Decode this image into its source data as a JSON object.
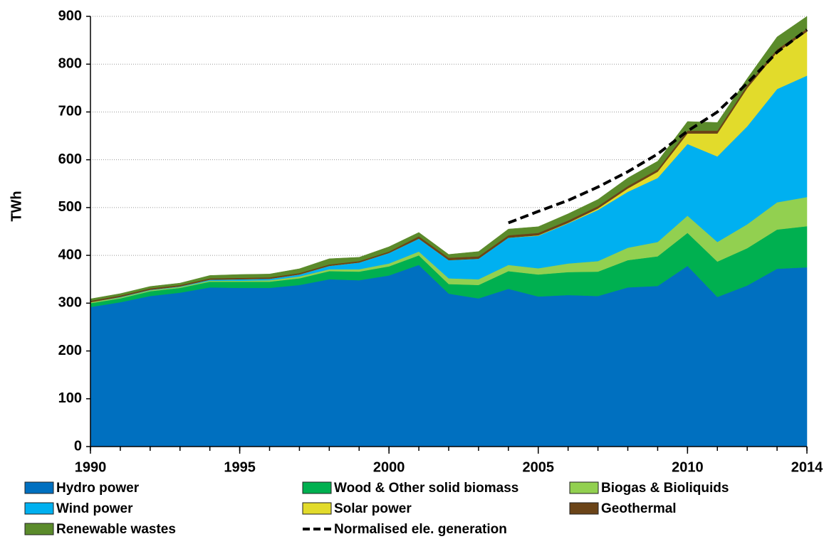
{
  "chart_data": {
    "type": "stacked-area",
    "y_label": "TWh",
    "x": [
      1990,
      1991,
      1992,
      1993,
      1994,
      1995,
      1996,
      1997,
      1998,
      1999,
      2000,
      2001,
      2002,
      2003,
      2004,
      2005,
      2006,
      2007,
      2008,
      2009,
      2010,
      2011,
      2012,
      2013,
      2014
    ],
    "xlim": [
      1990,
      2014
    ],
    "xticks": [
      1990,
      1995,
      2000,
      2005,
      2010,
      2014
    ],
    "ylim": [
      0,
      900
    ],
    "yticks": [
      0,
      100,
      200,
      300,
      400,
      500,
      600,
      700,
      800,
      900
    ],
    "grid": true,
    "legend": "bottom",
    "series": [
      {
        "name": "Hydro power",
        "color": "#0070c0",
        "values": [
          292,
          302,
          315,
          322,
          333,
          332,
          332,
          338,
          350,
          348,
          358,
          380,
          320,
          310,
          330,
          314,
          317,
          315,
          333,
          336,
          378,
          313,
          337,
          372,
          375
        ]
      },
      {
        "name": "Wood & Other solid biomass",
        "color": "#00b050",
        "values": [
          8,
          8,
          10,
          10,
          12,
          13,
          13,
          14,
          17,
          18,
          19,
          20,
          20,
          28,
          37,
          46,
          48,
          51,
          57,
          62,
          69,
          74,
          78,
          82,
          86
        ]
      },
      {
        "name": "Biogas & Bioliquids",
        "color": "#92d050",
        "values": [
          2,
          2,
          2,
          2,
          2,
          2,
          3,
          4,
          4,
          5,
          6,
          8,
          12,
          12,
          13,
          13,
          18,
          22,
          26,
          30,
          36,
          41,
          50,
          57,
          61
        ]
      },
      {
        "name": "Wind power",
        "color": "#00b0f0",
        "values": [
          0,
          1,
          1,
          1,
          2,
          3,
          3,
          4,
          7,
          14,
          22,
          27,
          38,
          43,
          57,
          68,
          84,
          107,
          117,
          134,
          150,
          179,
          205,
          237,
          254
        ]
      },
      {
        "name": "Solar power",
        "color": "#e2db2b",
        "values": [
          0,
          0,
          0,
          0,
          0,
          0,
          0,
          0,
          0,
          0,
          0,
          0,
          0,
          0,
          0,
          1,
          1,
          3,
          7,
          13,
          22,
          48,
          80,
          77,
          92
        ]
      },
      {
        "name": "Geothermal",
        "color": "#6b4418",
        "values": [
          3,
          3,
          3,
          3,
          3,
          3,
          3,
          3,
          3,
          3,
          3,
          5,
          5,
          5,
          5,
          5,
          5,
          5,
          5,
          5,
          6,
          6,
          6,
          6,
          6
        ]
      },
      {
        "name": "Renewable wastes",
        "color": "#5b8b2b",
        "values": [
          4,
          4,
          4,
          4,
          6,
          7,
          7,
          9,
          12,
          8,
          10,
          8,
          7,
          10,
          13,
          13,
          14,
          14,
          17,
          17,
          19,
          17,
          14,
          26,
          26
        ]
      }
    ],
    "line": {
      "name": "Normalised ele. generation",
      "color": "#000000",
      "values": [
        null,
        null,
        null,
        null,
        null,
        null,
        null,
        null,
        null,
        null,
        null,
        null,
        null,
        null,
        468,
        492,
        515,
        543,
        575,
        612,
        660,
        700,
        760,
        825,
        872
      ]
    }
  }
}
